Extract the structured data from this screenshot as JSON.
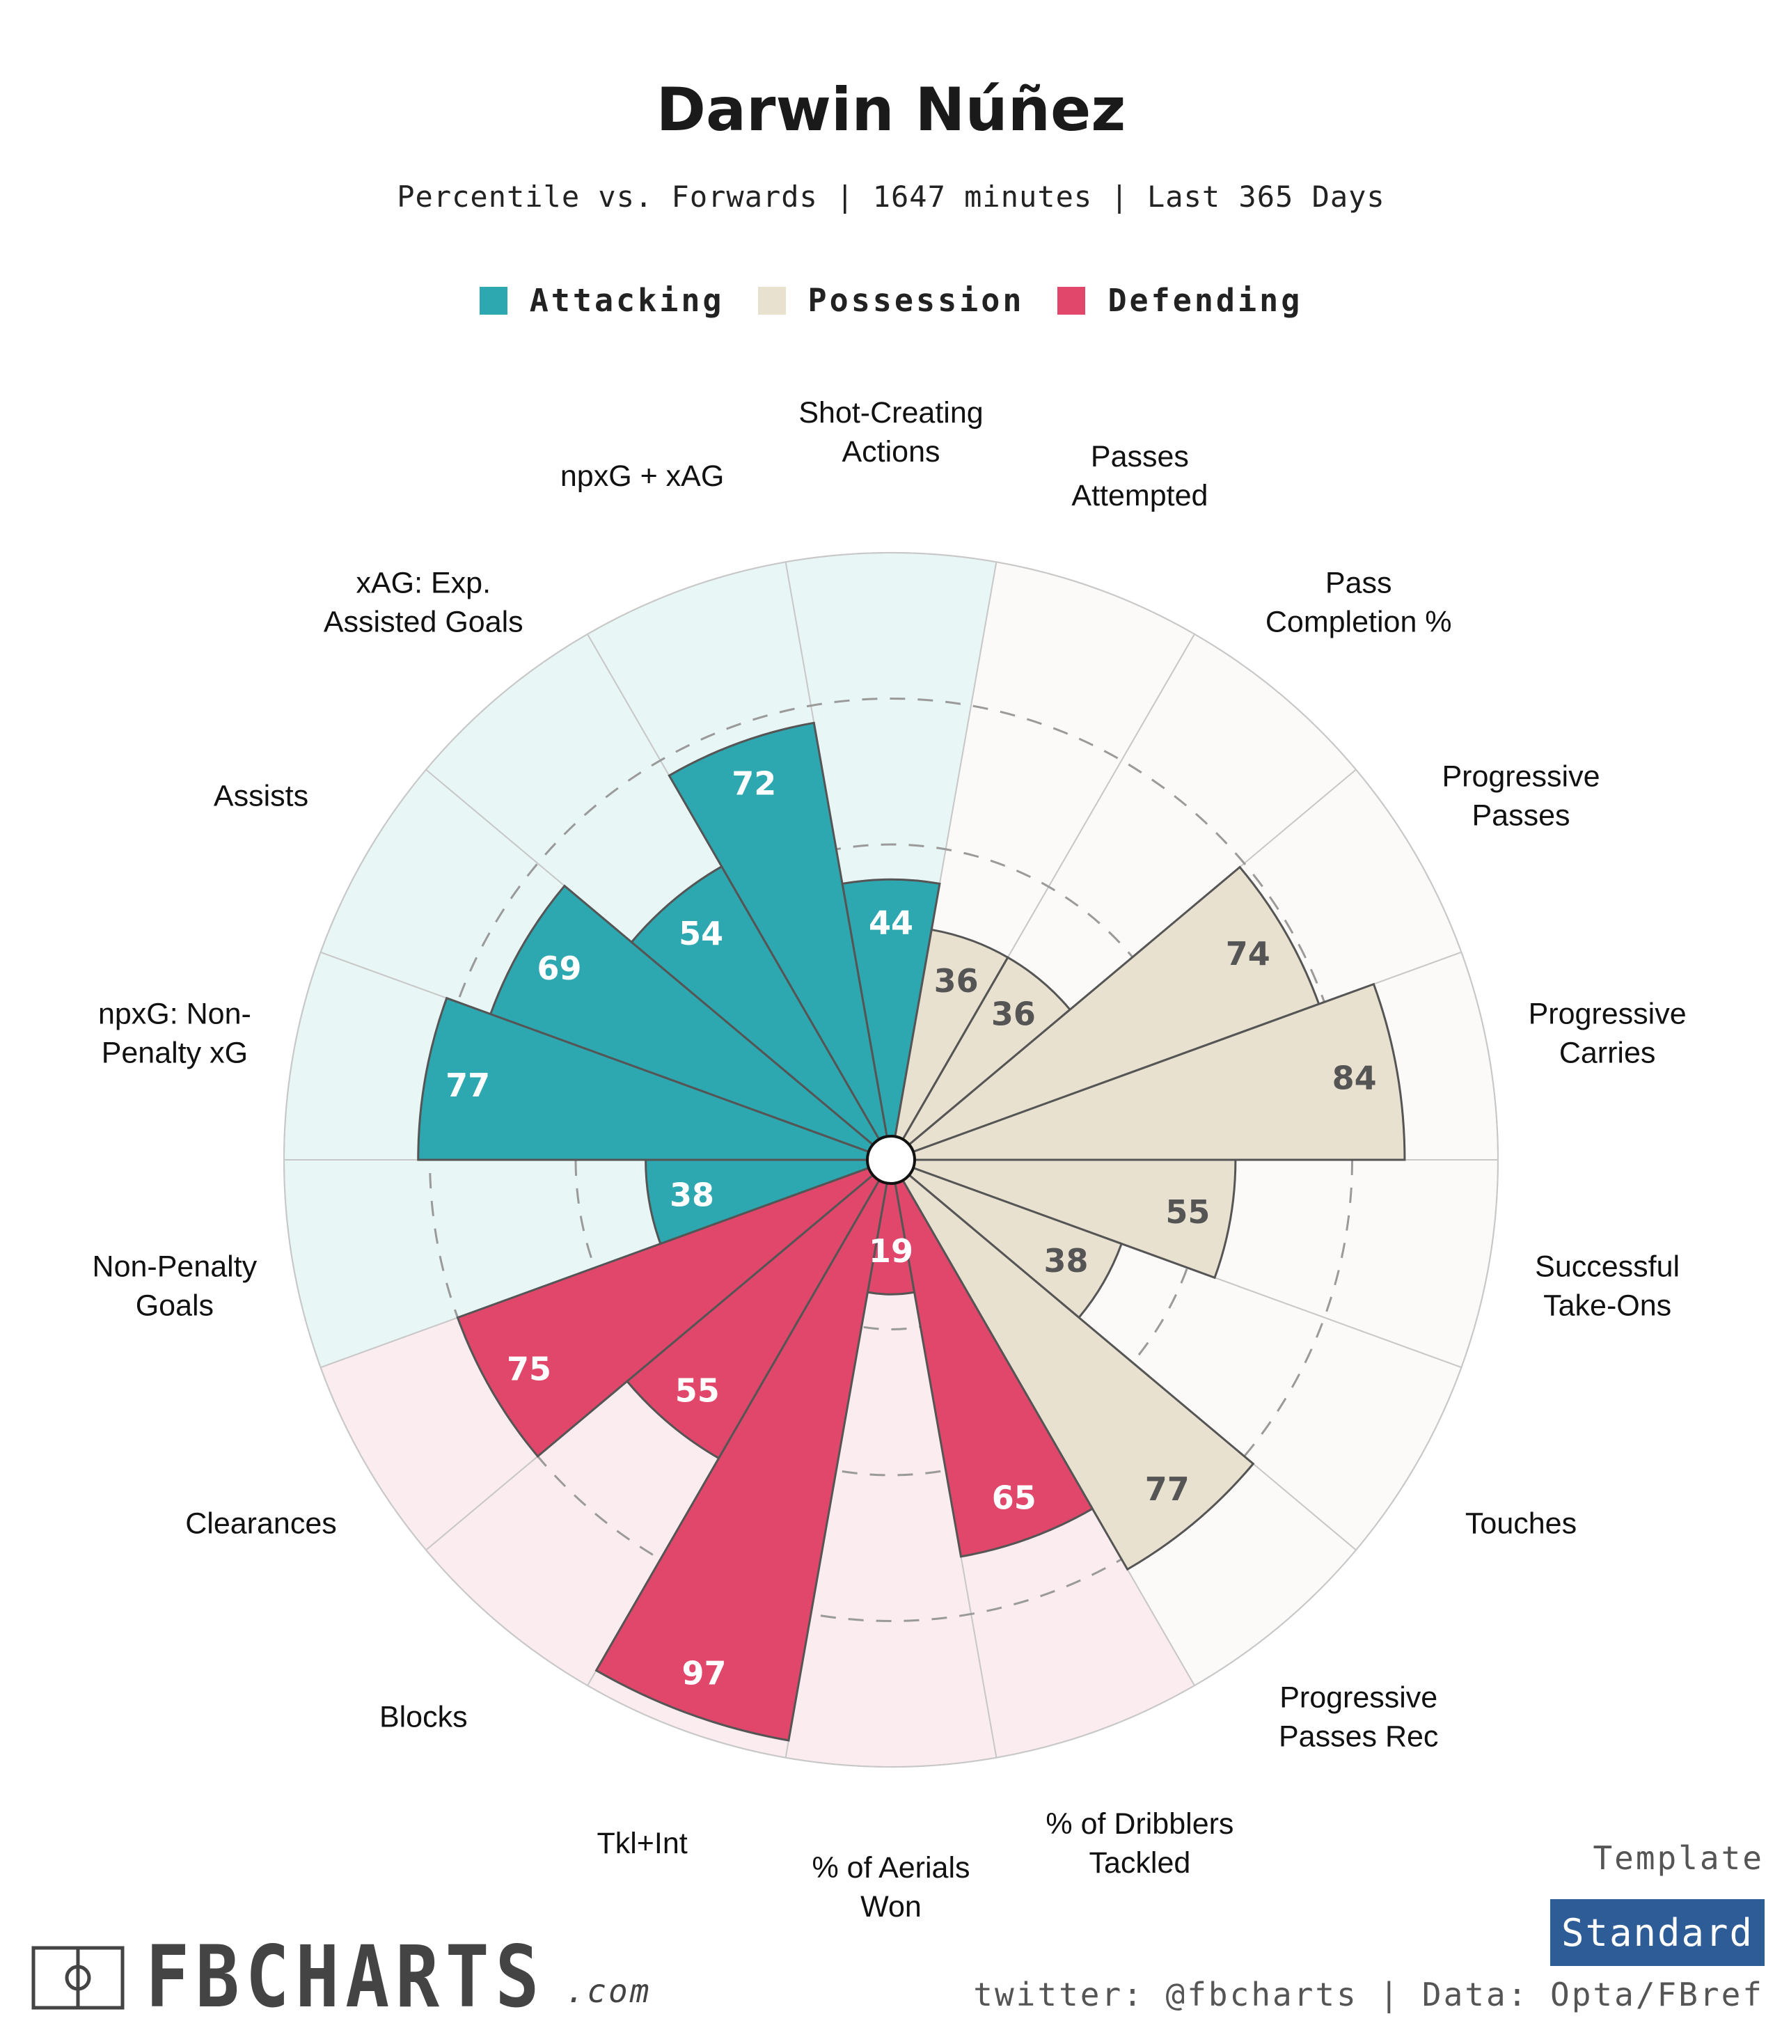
{
  "title": "Darwin Núñez",
  "subtitle": "Percentile vs. Forwards | 1647 minutes | Last 365 Days",
  "legend": [
    {
      "label": "Attacking",
      "color": "#2ea8b0"
    },
    {
      "label": "Possession",
      "color": "#e9e1d0"
    },
    {
      "label": "Defending",
      "color": "#e0476b"
    }
  ],
  "chart_data": {
    "type": "polar-bar",
    "rmax": 100,
    "grid": [
      25,
      50,
      75
    ],
    "categories": [
      {
        "label": [
          "Shot-Creating",
          "Actions"
        ],
        "value": 44,
        "group": "Attacking"
      },
      {
        "label": [
          "Passes",
          "Attempted"
        ],
        "value": 36,
        "group": "Possession"
      },
      {
        "label": [
          "Pass",
          "Completion %"
        ],
        "value": 36,
        "group": "Possession"
      },
      {
        "label": [
          "Progressive",
          "Passes"
        ],
        "value": 74,
        "group": "Possession"
      },
      {
        "label": [
          "Progressive",
          "Carries"
        ],
        "value": 84,
        "group": "Possession"
      },
      {
        "label": [
          "Successful",
          "Take-Ons"
        ],
        "value": 55,
        "group": "Possession"
      },
      {
        "label": [
          "Touches"
        ],
        "value": 38,
        "group": "Possession"
      },
      {
        "label": [
          "Progressive",
          "Passes Rec"
        ],
        "value": 77,
        "group": "Possession"
      },
      {
        "label": [
          "% of Dribblers",
          "Tackled"
        ],
        "value": 65,
        "group": "Defending"
      },
      {
        "label": [
          "% of Aerials",
          "Won"
        ],
        "value": 19,
        "group": "Defending"
      },
      {
        "label": [
          "Tkl+Int"
        ],
        "value": 97,
        "group": "Defending"
      },
      {
        "label": [
          "Blocks"
        ],
        "value": 55,
        "group": "Defending"
      },
      {
        "label": [
          "Clearances"
        ],
        "value": 75,
        "group": "Defending"
      },
      {
        "label": [
          "Non-Penalty",
          "Goals"
        ],
        "value": 38,
        "group": "Attacking"
      },
      {
        "label": [
          "npxG: Non-",
          "Penalty xG"
        ],
        "value": 77,
        "group": "Attacking"
      },
      {
        "label": [
          "Assists"
        ],
        "value": 69,
        "group": "Attacking"
      },
      {
        "label": [
          "xAG: Exp.",
          "Assisted Goals"
        ],
        "value": 54,
        "group": "Attacking"
      },
      {
        "label": [
          "npxG + xAG"
        ],
        "value": 72,
        "group": "Attacking"
      }
    ],
    "group_colors": {
      "Attacking": {
        "bar": "#2ea8b0",
        "bg": "#e9f6f6",
        "text": "#ffffff"
      },
      "Possession": {
        "bar": "#e9e1d0",
        "bg": "#fbfaf8",
        "text": "#555555"
      },
      "Defending": {
        "bar": "#e0476b",
        "bg": "#fbecef",
        "text": "#ffffff"
      }
    }
  },
  "footer": {
    "template_label": "Template",
    "template_value": "Standard",
    "credit": "twitter: @fbcharts | Data: Opta/FBref",
    "logo_text": "FBCHARTS",
    "logo_suffix": ".com"
  }
}
